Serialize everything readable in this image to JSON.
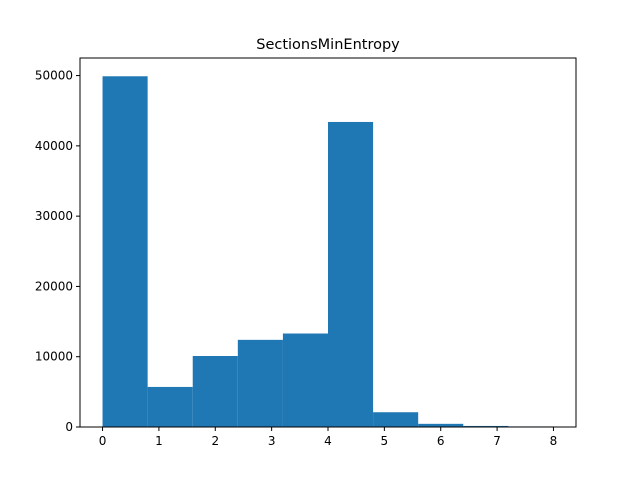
{
  "chart_data": {
    "type": "bar",
    "subtype": "histogram",
    "title": "SectionsMinEntropy",
    "xlabel": "",
    "ylabel": "",
    "bar_color": "#1f77b4",
    "grid": false,
    "legend": "none",
    "xlim": [
      -0.4,
      8.4
    ],
    "ylim": [
      0,
      52500
    ],
    "x_ticks": [
      0,
      1,
      2,
      3,
      4,
      5,
      6,
      7,
      8
    ],
    "y_ticks": [
      0,
      10000,
      20000,
      30000,
      40000,
      50000
    ],
    "bin_edges": [
      0,
      0.8,
      1.6,
      2.4,
      3.2,
      4.0,
      4.8,
      5.6,
      6.4,
      7.2,
      8.0
    ],
    "values": [
      49900,
      5700,
      10100,
      12400,
      13300,
      43400,
      2100,
      450,
      150,
      80
    ]
  }
}
